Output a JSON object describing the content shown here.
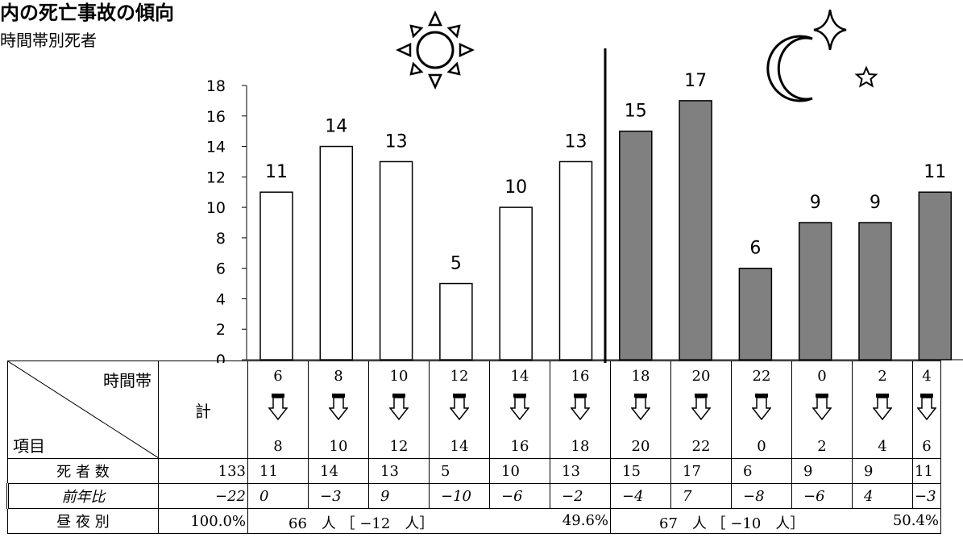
{
  "title": "内の死亡事故の傾向",
  "subtitle": "時間帯別死者",
  "chart_data": {
    "type": "bar",
    "categories": [
      "6-8",
      "8-10",
      "10-12",
      "12-14",
      "14-16",
      "16-18",
      "18-20",
      "20-22",
      "22-0",
      "0-2",
      "2-4",
      "4-6"
    ],
    "values": [
      11,
      14,
      13,
      5,
      10,
      13,
      15,
      17,
      6,
      9,
      9,
      11
    ],
    "ylim": [
      0,
      18
    ],
    "yticks": [
      0,
      2,
      4,
      6,
      8,
      10,
      12,
      14,
      16,
      18
    ],
    "grid": false,
    "colors": {
      "day": "#ffffff",
      "night": "#808080",
      "outline": "#000000"
    }
  },
  "table": {
    "header_top": "時間帯",
    "header_bottom": "項目",
    "total_header": "計",
    "time_start": [
      "6",
      "8",
      "10",
      "12",
      "14",
      "16",
      "18",
      "20",
      "22",
      "0",
      "2",
      "4"
    ],
    "time_end": [
      "8",
      "10",
      "12",
      "14",
      "16",
      "18",
      "20",
      "22",
      "0",
      "2",
      "4",
      "6"
    ],
    "rows": {
      "deaths_label": "死 者 数",
      "deaths_total": "133",
      "deaths": [
        "11",
        "14",
        "13",
        "5",
        "10",
        "13",
        "15",
        "17",
        "6",
        "9",
        "9",
        "11"
      ],
      "yoy_label": "前年比",
      "yoy_total": "−22",
      "yoy": [
        "0",
        "−3",
        "9",
        "−10",
        "−6",
        "−2",
        "−4",
        "7",
        "−8",
        "−6",
        "4",
        "−3"
      ],
      "daynight_label": "昼 夜 別",
      "daynight_total": "100.0%",
      "day_summary": "66　人 ［ −12　人］",
      "day_pct": "49.6%",
      "night_summary": "67　人 ［ −10　人］",
      "night_pct": "50.4%"
    }
  },
  "icons": [
    "sun-icon",
    "moon-icon",
    "star-icon",
    "sparkle-icon",
    "arrow-down-icon"
  ]
}
